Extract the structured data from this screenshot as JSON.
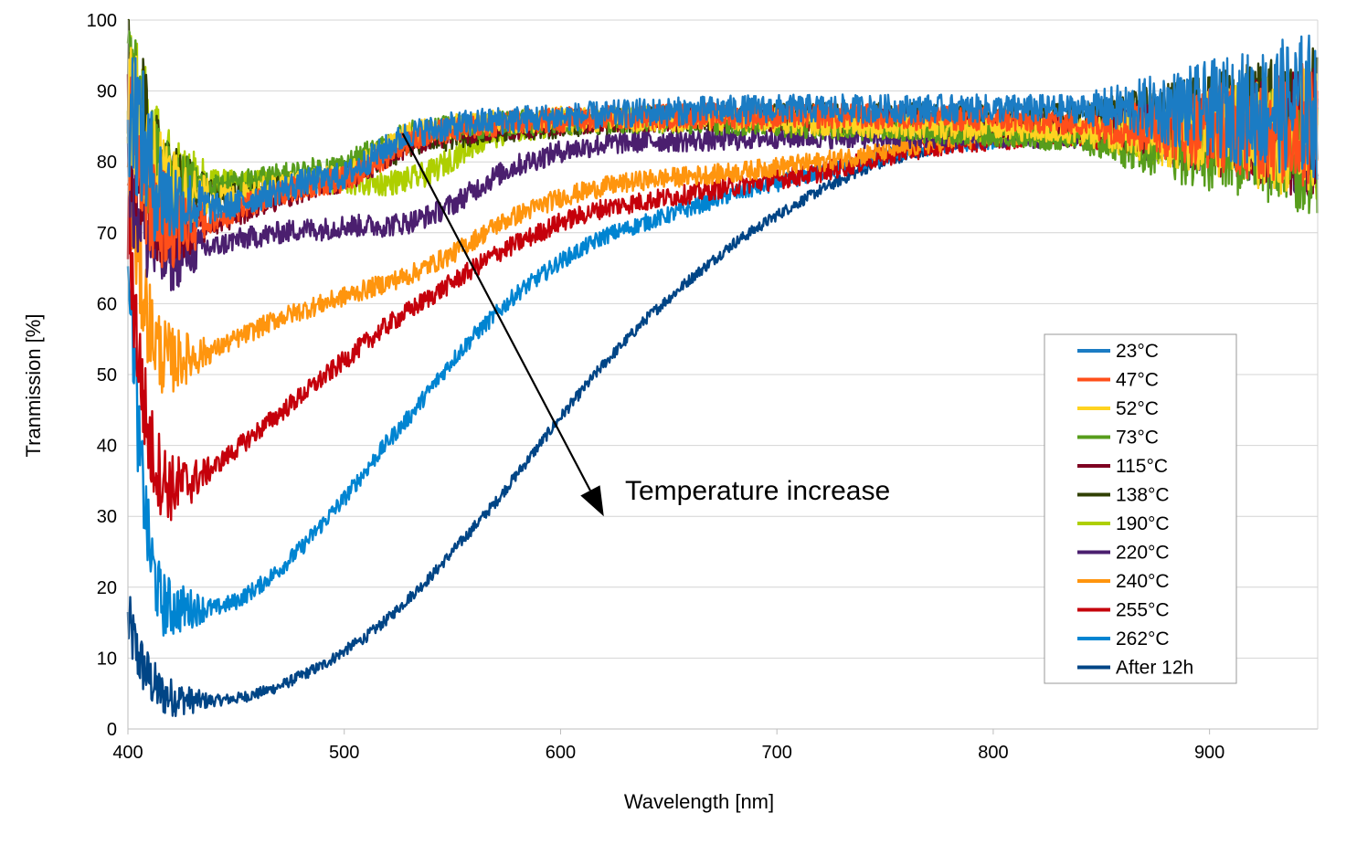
{
  "chart_data": {
    "type": "line",
    "title": "",
    "xlabel": "Wavelength [nm]",
    "ylabel": "Tranmission [%]",
    "xlim": [
      400,
      950
    ],
    "ylim": [
      0,
      100
    ],
    "xticks": [
      "400",
      "500",
      "600",
      "700",
      "800",
      "900"
    ],
    "yticks": [
      "0",
      "10",
      "20",
      "30",
      "40",
      "50",
      "60",
      "70",
      "80",
      "90",
      "100"
    ],
    "grid": "horizontal",
    "legend_position": "right",
    "annotation": {
      "text": "Temperature increase",
      "arrow_from": [
        527,
        84
      ],
      "arrow_to": [
        620,
        30
      ]
    },
    "x": [
      400,
      405,
      410,
      415,
      420,
      430,
      440,
      450,
      460,
      470,
      480,
      490,
      500,
      510,
      520,
      530,
      540,
      550,
      560,
      570,
      580,
      600,
      620,
      640,
      660,
      680,
      700,
      720,
      740,
      760,
      780,
      800,
      820,
      840,
      860,
      880,
      900,
      920,
      940,
      950
    ],
    "series": [
      {
        "name": "23°C",
        "color": "#1b7cc4",
        "noise": 2.0,
        "values": [
          90,
          85,
          79,
          76,
          74.5,
          74,
          73.5,
          74,
          75,
          76,
          77,
          77.5,
          78,
          80,
          82,
          84,
          84.5,
          85,
          85.5,
          85.8,
          86,
          86.3,
          86.6,
          87,
          87.2,
          87.4,
          87.5,
          87.5,
          87.5,
          87.5,
          87.5,
          87.5,
          87.5,
          87.5,
          87.5,
          87.5,
          87.5,
          87.5,
          88,
          88
        ]
      },
      {
        "name": "47°C",
        "color": "#ff4f1a",
        "noise": 1.8,
        "values": [
          85,
          80,
          75,
          72,
          71,
          71,
          72,
          73,
          74.5,
          75.5,
          76.5,
          77,
          77.5,
          79,
          81,
          83,
          84,
          84.5,
          85,
          85.3,
          85.6,
          86,
          86.2,
          86.4,
          86.5,
          86.5,
          86.5,
          86.5,
          86.4,
          86.3,
          86.2,
          86,
          85.8,
          85.5,
          85.2,
          85,
          85,
          85,
          85,
          85
        ]
      },
      {
        "name": "52°C",
        "color": "#ffd320",
        "noise": 1.8,
        "values": [
          88,
          84,
          79,
          77,
          76,
          75.5,
          75,
          75,
          76,
          76.5,
          77,
          77.5,
          78,
          80,
          82,
          84,
          84.5,
          85,
          85.2,
          85.5,
          85.8,
          86,
          86,
          86,
          86,
          86,
          85.8,
          85.5,
          85.3,
          85,
          85,
          84.8,
          84.5,
          84.3,
          84,
          84,
          84,
          84,
          84,
          84
        ]
      },
      {
        "name": "73°C",
        "color": "#579d1c",
        "noise": 1.8,
        "values": [
          90,
          86,
          80,
          78,
          77,
          76.5,
          76.5,
          77,
          77.5,
          78,
          78.5,
          79,
          79.5,
          81,
          82.5,
          84,
          84.5,
          84.8,
          85,
          85.2,
          85.5,
          85.7,
          85.8,
          85.8,
          85.7,
          85.5,
          85.3,
          85,
          84.8,
          84.5,
          84.3,
          84,
          83.5,
          83,
          82.5,
          82,
          82,
          82,
          82,
          82
        ]
      },
      {
        "name": "115°C",
        "color": "#7e0021",
        "noise": 1.8,
        "values": [
          85,
          80,
          75,
          72,
          71,
          71,
          71.5,
          72.5,
          74,
          75,
          76,
          77,
          77.5,
          79,
          81,
          82.5,
          83.5,
          84,
          84.5,
          84.8,
          85,
          85.5,
          85.8,
          86,
          86,
          86,
          86,
          86,
          85.8,
          85.6,
          85.4,
          85.2,
          85,
          84.8,
          84.5,
          84,
          84,
          84,
          84,
          84
        ]
      },
      {
        "name": "138°C",
        "color": "#314004",
        "noise": 1.8,
        "values": [
          92,
          88,
          82,
          78,
          77,
          76,
          75.5,
          75.5,
          76,
          76.5,
          77,
          77.5,
          78,
          79.5,
          81,
          82,
          83,
          83.5,
          84,
          84.3,
          84.6,
          85.2,
          85.7,
          86,
          86.2,
          86.4,
          86.5,
          86.5,
          86.5,
          86.5,
          86.5,
          86.5,
          86.5,
          86.5,
          86.5,
          86.5,
          86.5,
          86.5,
          87,
          87
        ]
      },
      {
        "name": "190°C",
        "color": "#aecf00",
        "noise": 1.8,
        "values": [
          92,
          88,
          83,
          79,
          78,
          77.5,
          77.5,
          77,
          77,
          77,
          77,
          77,
          77,
          77,
          77,
          77.5,
          78.5,
          80.5,
          82.5,
          83.8,
          84.5,
          85.5,
          86,
          86.2,
          86.2,
          86,
          85.8,
          85.5,
          85.2,
          85,
          84.8,
          84.5,
          84.3,
          84,
          84,
          84,
          84,
          84,
          84,
          84
        ]
      },
      {
        "name": "220°C",
        "color": "#4b1f6f",
        "noise": 1.6,
        "values": [
          80,
          74,
          69,
          67,
          67,
          67.5,
          68,
          69,
          69.5,
          70,
          70.5,
          70.5,
          71,
          71,
          71,
          71.5,
          72.5,
          74,
          76,
          78,
          79.5,
          81.5,
          82.5,
          83,
          83,
          83.2,
          83.5,
          83.5,
          83.5,
          83.5,
          83.5,
          83.5,
          83.5,
          83.5,
          83.5,
          83.5,
          83.5,
          83.5,
          83.5,
          83.5
        ]
      },
      {
        "name": "240°C",
        "color": "#ff950e",
        "noise": 1.4,
        "values": [
          80,
          65,
          57,
          53,
          52,
          52.5,
          53.5,
          55,
          56.5,
          58,
          59,
          60,
          61,
          62,
          63,
          64,
          65.5,
          67,
          69,
          71,
          72.5,
          75,
          76.5,
          77.5,
          78,
          78.5,
          79.3,
          80,
          81,
          82,
          83,
          83.5,
          84,
          84,
          84,
          84,
          84,
          84,
          84,
          84
        ]
      },
      {
        "name": "255°C",
        "color": "#c5000b",
        "noise": 1.4,
        "values": [
          72,
          52,
          40,
          36,
          34,
          35,
          37,
          39.5,
          42,
          44.5,
          47,
          49.5,
          52,
          54.5,
          57,
          59,
          61,
          63,
          65,
          67,
          68.5,
          71.5,
          73.5,
          74.5,
          75.5,
          76.5,
          77.5,
          78.5,
          80,
          81.5,
          82.5,
          83,
          83.5,
          83.5,
          83.5,
          83.5,
          83.5,
          83.5,
          83.5,
          83.5
        ]
      },
      {
        "name": "262°C",
        "color": "#0084d1",
        "noise": 1.2,
        "values": [
          70,
          40,
          25,
          18,
          17,
          17,
          17,
          18,
          20,
          22.5,
          25.5,
          29,
          32.5,
          36.5,
          40.5,
          44,
          48,
          52,
          55.5,
          58.5,
          61.5,
          66,
          69.5,
          71.5,
          73.5,
          75.5,
          77,
          78.5,
          80,
          81.5,
          82.5,
          83,
          83.5,
          83.5,
          83.5,
          83.5,
          83.5,
          83.5,
          83.5,
          83.5
        ]
      },
      {
        "name": "After 12h",
        "color": "#004586",
        "noise": 0.8,
        "values": [
          15,
          10,
          7,
          5,
          4.5,
          4,
          4,
          4.3,
          5,
          6,
          7.5,
          9,
          11,
          13,
          15.5,
          18.5,
          21.5,
          25,
          28.5,
          32,
          36,
          44,
          51.5,
          58,
          63.5,
          68.5,
          72.5,
          76,
          79,
          81,
          82.5,
          83.5,
          84,
          84,
          84,
          84,
          84,
          84,
          84,
          84
        ]
      }
    ]
  }
}
